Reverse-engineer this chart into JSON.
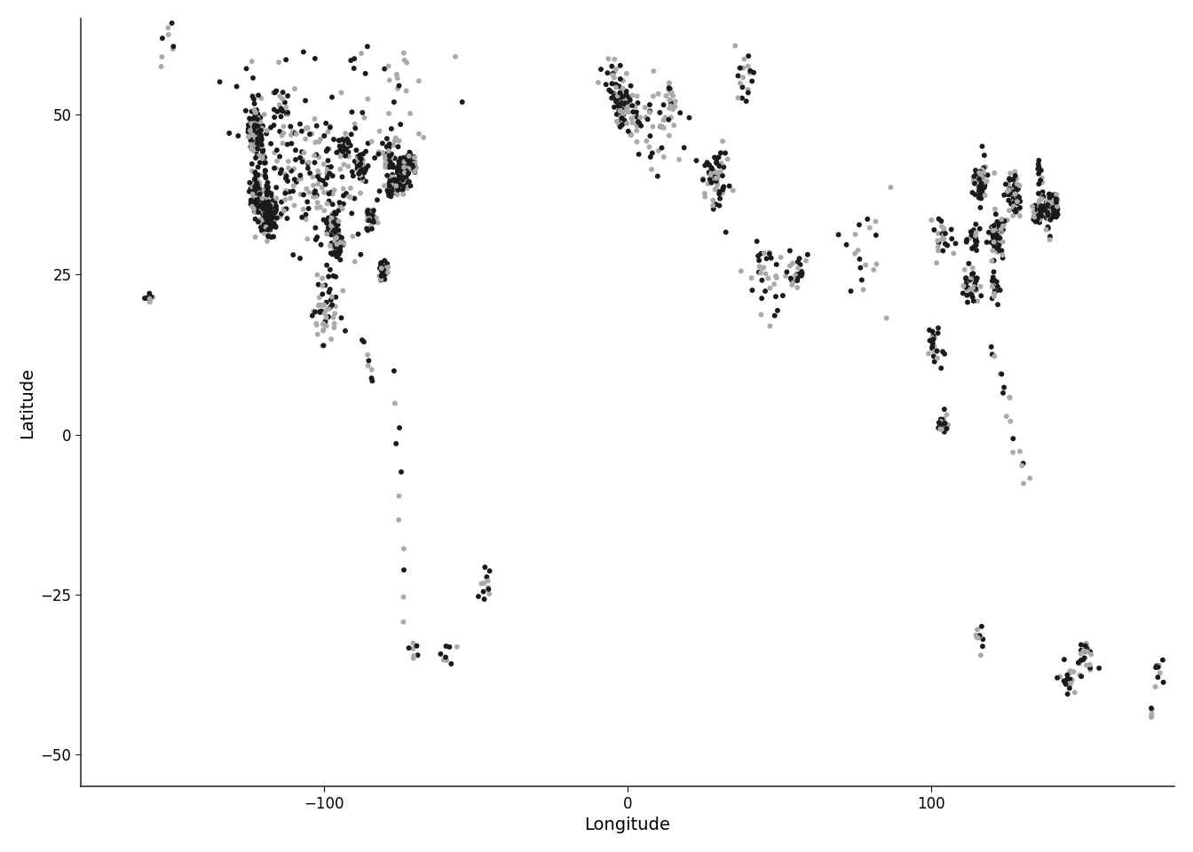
{
  "title": "",
  "xlabel": "Longitude",
  "ylabel": "Latitude",
  "xlim": [
    -180,
    180
  ],
  "ylim": [
    -55,
    65
  ],
  "xticks": [
    -100,
    0,
    100
  ],
  "yticks": [
    -50,
    -25,
    0,
    25,
    50
  ],
  "background_color": "#ffffff",
  "point_size": 18,
  "alpha": 1.0,
  "axis_linewidth": 1.2,
  "xlabel_fontsize": 14,
  "ylabel_fontsize": 14,
  "tick_fontsize": 12,
  "dark_color": "#1a1a1a",
  "light_color": "#aaaaaa"
}
